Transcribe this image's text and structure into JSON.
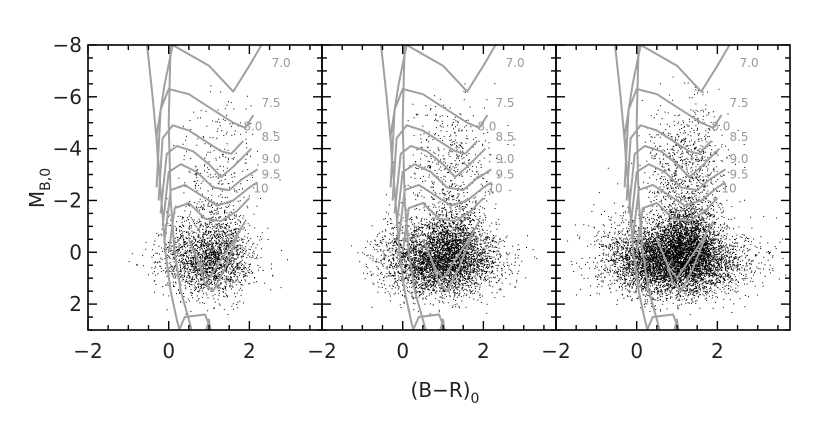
{
  "chart_data": {
    "type": "scatter",
    "xlabel": "(B−R)",
    "xlabel_sub": "0",
    "ylabel": "M",
    "ylabel_sub": "B,0",
    "xlim": [
      -2,
      3.8
    ],
    "ylim": [
      3,
      -8
    ],
    "x_ticks": [
      -2,
      0,
      2
    ],
    "x_tick_labels": [
      "−2",
      "0",
      "2"
    ],
    "y_ticks": [
      -8,
      -6,
      -4,
      -2,
      0,
      2
    ],
    "y_tick_labels": [
      "−8",
      "−6",
      "−4",
      "−2",
      "0",
      "2"
    ],
    "panels": 3,
    "point_color": "#000000",
    "isochrone_color": "#a0a0a0",
    "isochrones": [
      {
        "label": "7.0",
        "label_x": 2.55,
        "label_y": -7.15
      },
      {
        "label": "7.5",
        "label_x": 2.3,
        "label_y": -5.6
      },
      {
        "label": "8.0",
        "label_x": 1.85,
        "label_y": -4.7
      },
      {
        "label": "8.5",
        "label_x": 2.3,
        "label_y": -4.3
      },
      {
        "label": "9.0",
        "label_x": 2.3,
        "label_y": -3.45
      },
      {
        "label": "9.5",
        "label_x": 2.3,
        "label_y": -2.85
      },
      {
        "label": "10",
        "label_x": 2.1,
        "label_y": -2.3
      }
    ]
  }
}
